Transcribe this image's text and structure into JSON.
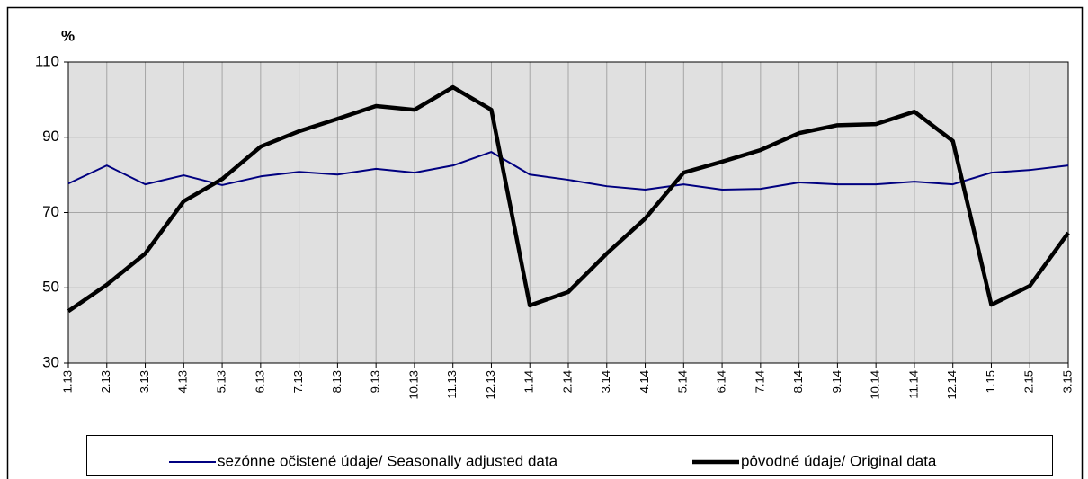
{
  "chart_data": {
    "type": "line",
    "y_label": "%",
    "categories": [
      "1.13",
      "2.13",
      "3.13",
      "4.13",
      "5.13",
      "6.13",
      "7.13",
      "8.13",
      "9.13",
      "10.13",
      "11.13",
      "12.13",
      "1.14",
      "2.14",
      "3.14",
      "4.14",
      "5.14",
      "6.14",
      "7.14",
      "8.14",
      "9.14",
      "10.14",
      "11.14",
      "12.14",
      "1.15",
      "2.15",
      "3.15"
    ],
    "series": [
      {
        "name": "sezónne očistené údaje/ Seasonally adjusted data",
        "color": "#000080",
        "width": 2,
        "values": [
          77.7,
          82.5,
          77.5,
          79.9,
          77.3,
          79.6,
          80.8,
          80.1,
          81.6,
          80.6,
          82.5,
          86.1,
          80.1,
          78.7,
          77.0,
          76.1,
          77.5,
          76.1,
          76.3,
          78.0,
          77.5,
          77.5,
          78.2,
          77.5,
          80.6,
          81.3,
          82.5
        ]
      },
      {
        "name": "pôvodné údaje/ Original data",
        "color": "#000000",
        "width": 4.5,
        "values": [
          43.8,
          50.8,
          59.1,
          73.0,
          78.9,
          87.5,
          91.6,
          94.9,
          98.3,
          97.3,
          103.3,
          97.3,
          45.3,
          48.9,
          59.1,
          68.4,
          80.6,
          83.5,
          86.6,
          91.1,
          93.2,
          93.5,
          96.8,
          89.0,
          45.5,
          50.5,
          64.6
        ]
      }
    ],
    "ylim": [
      30,
      110
    ],
    "yticks": [
      30,
      50,
      70,
      90,
      110
    ],
    "grid": true,
    "legend": "bottom"
  }
}
